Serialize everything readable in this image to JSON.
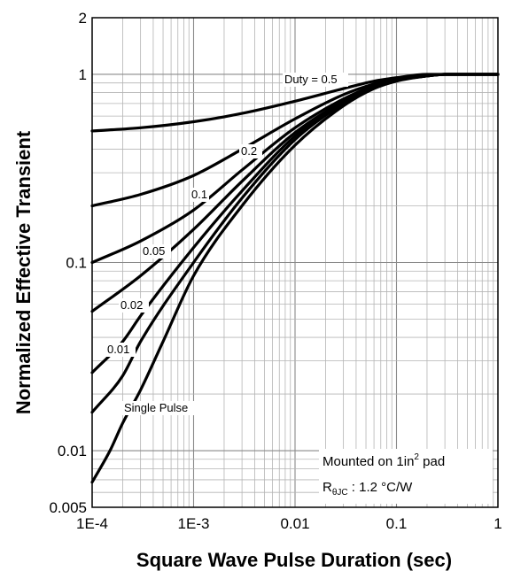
{
  "chart_data": {
    "type": "line",
    "xscale": "log",
    "yscale": "log",
    "xlim": [
      0.0001,
      1
    ],
    "ylim": [
      0.005,
      2
    ],
    "grid": true,
    "xlabel": "Square Wave Pulse Duration (sec)",
    "ylabel": "Normalized Effective Transient",
    "x_ticks": [
      {
        "value": 0.0001,
        "label": "1E-4"
      },
      {
        "value": 0.001,
        "label": "1E-3"
      },
      {
        "value": 0.01,
        "label": "0.01"
      },
      {
        "value": 0.1,
        "label": "0.1"
      },
      {
        "value": 1,
        "label": "1"
      }
    ],
    "y_ticks": [
      {
        "value": 0.005,
        "label": "0.005"
      },
      {
        "value": 0.01,
        "label": "0.01"
      },
      {
        "value": 0.1,
        "label": "0.1"
      },
      {
        "value": 1,
        "label": "1"
      },
      {
        "value": 2,
        "label": "2"
      }
    ],
    "series": [
      {
        "name": "Duty = 0.5",
        "label": "Duty = 0.5",
        "x": [
          0.0001,
          0.0003,
          0.001,
          0.003,
          0.01,
          0.03,
          0.06,
          0.1,
          0.2,
          0.3,
          0.5,
          1
        ],
        "y": [
          0.5,
          0.52,
          0.56,
          0.62,
          0.72,
          0.84,
          0.92,
          0.96,
          1.0,
          1.0,
          1.0,
          1.0
        ]
      },
      {
        "name": "0.2",
        "label": "0.2",
        "x": [
          0.0001,
          0.0003,
          0.001,
          0.003,
          0.01,
          0.03,
          0.06,
          0.1,
          0.2,
          0.3,
          0.5,
          1
        ],
        "y": [
          0.2,
          0.23,
          0.29,
          0.4,
          0.58,
          0.78,
          0.89,
          0.95,
          0.99,
          1.0,
          1.0,
          1.0
        ]
      },
      {
        "name": "0.1",
        "label": "0.1",
        "x": [
          0.0001,
          0.0003,
          0.001,
          0.003,
          0.01,
          0.03,
          0.06,
          0.1,
          0.2,
          0.3,
          0.5,
          1
        ],
        "y": [
          0.1,
          0.13,
          0.19,
          0.31,
          0.52,
          0.74,
          0.87,
          0.94,
          0.99,
          1.0,
          1.0,
          1.0
        ]
      },
      {
        "name": "0.05",
        "label": "0.05",
        "x": [
          0.0001,
          0.0003,
          0.001,
          0.003,
          0.01,
          0.03,
          0.06,
          0.1,
          0.2,
          0.3,
          0.5,
          1
        ],
        "y": [
          0.055,
          0.085,
          0.15,
          0.27,
          0.49,
          0.72,
          0.86,
          0.93,
          0.98,
          1.0,
          1.0,
          1.0
        ]
      },
      {
        "name": "0.02",
        "label": "0.02",
        "x": [
          0.0001,
          0.0002,
          0.0003,
          0.001,
          0.003,
          0.01,
          0.03,
          0.06,
          0.1,
          0.2,
          0.3,
          0.5,
          1
        ],
        "y": [
          0.026,
          0.038,
          0.052,
          0.12,
          0.24,
          0.47,
          0.71,
          0.85,
          0.93,
          0.98,
          1.0,
          1.0,
          1.0
        ]
      },
      {
        "name": "0.01",
        "label": "0.01",
        "x": [
          0.0001,
          0.0002,
          0.0003,
          0.001,
          0.003,
          0.01,
          0.03,
          0.06,
          0.1,
          0.2,
          0.3,
          0.5,
          1
        ],
        "y": [
          0.016,
          0.025,
          0.038,
          0.1,
          0.22,
          0.45,
          0.7,
          0.85,
          0.93,
          0.98,
          1.0,
          1.0,
          1.0
        ]
      },
      {
        "name": "Single Pulse",
        "label": "Single Pulse",
        "x": [
          0.0001,
          0.00015,
          0.0002,
          0.0003,
          0.0005,
          0.001,
          0.003,
          0.01,
          0.03,
          0.06,
          0.1,
          0.2,
          0.3,
          0.5,
          1
        ],
        "y": [
          0.0068,
          0.01,
          0.014,
          0.021,
          0.038,
          0.085,
          0.2,
          0.42,
          0.68,
          0.84,
          0.92,
          0.98,
          1.0,
          1.0,
          1.0
        ]
      }
    ],
    "annotation": {
      "line1_main": "Mounted on 1in",
      "line1_sup": "2",
      "line1_tail": " pad",
      "line2_main": "R",
      "line2_sub": "θJC",
      "line2_tail": " : 1.2 °C/W"
    }
  }
}
